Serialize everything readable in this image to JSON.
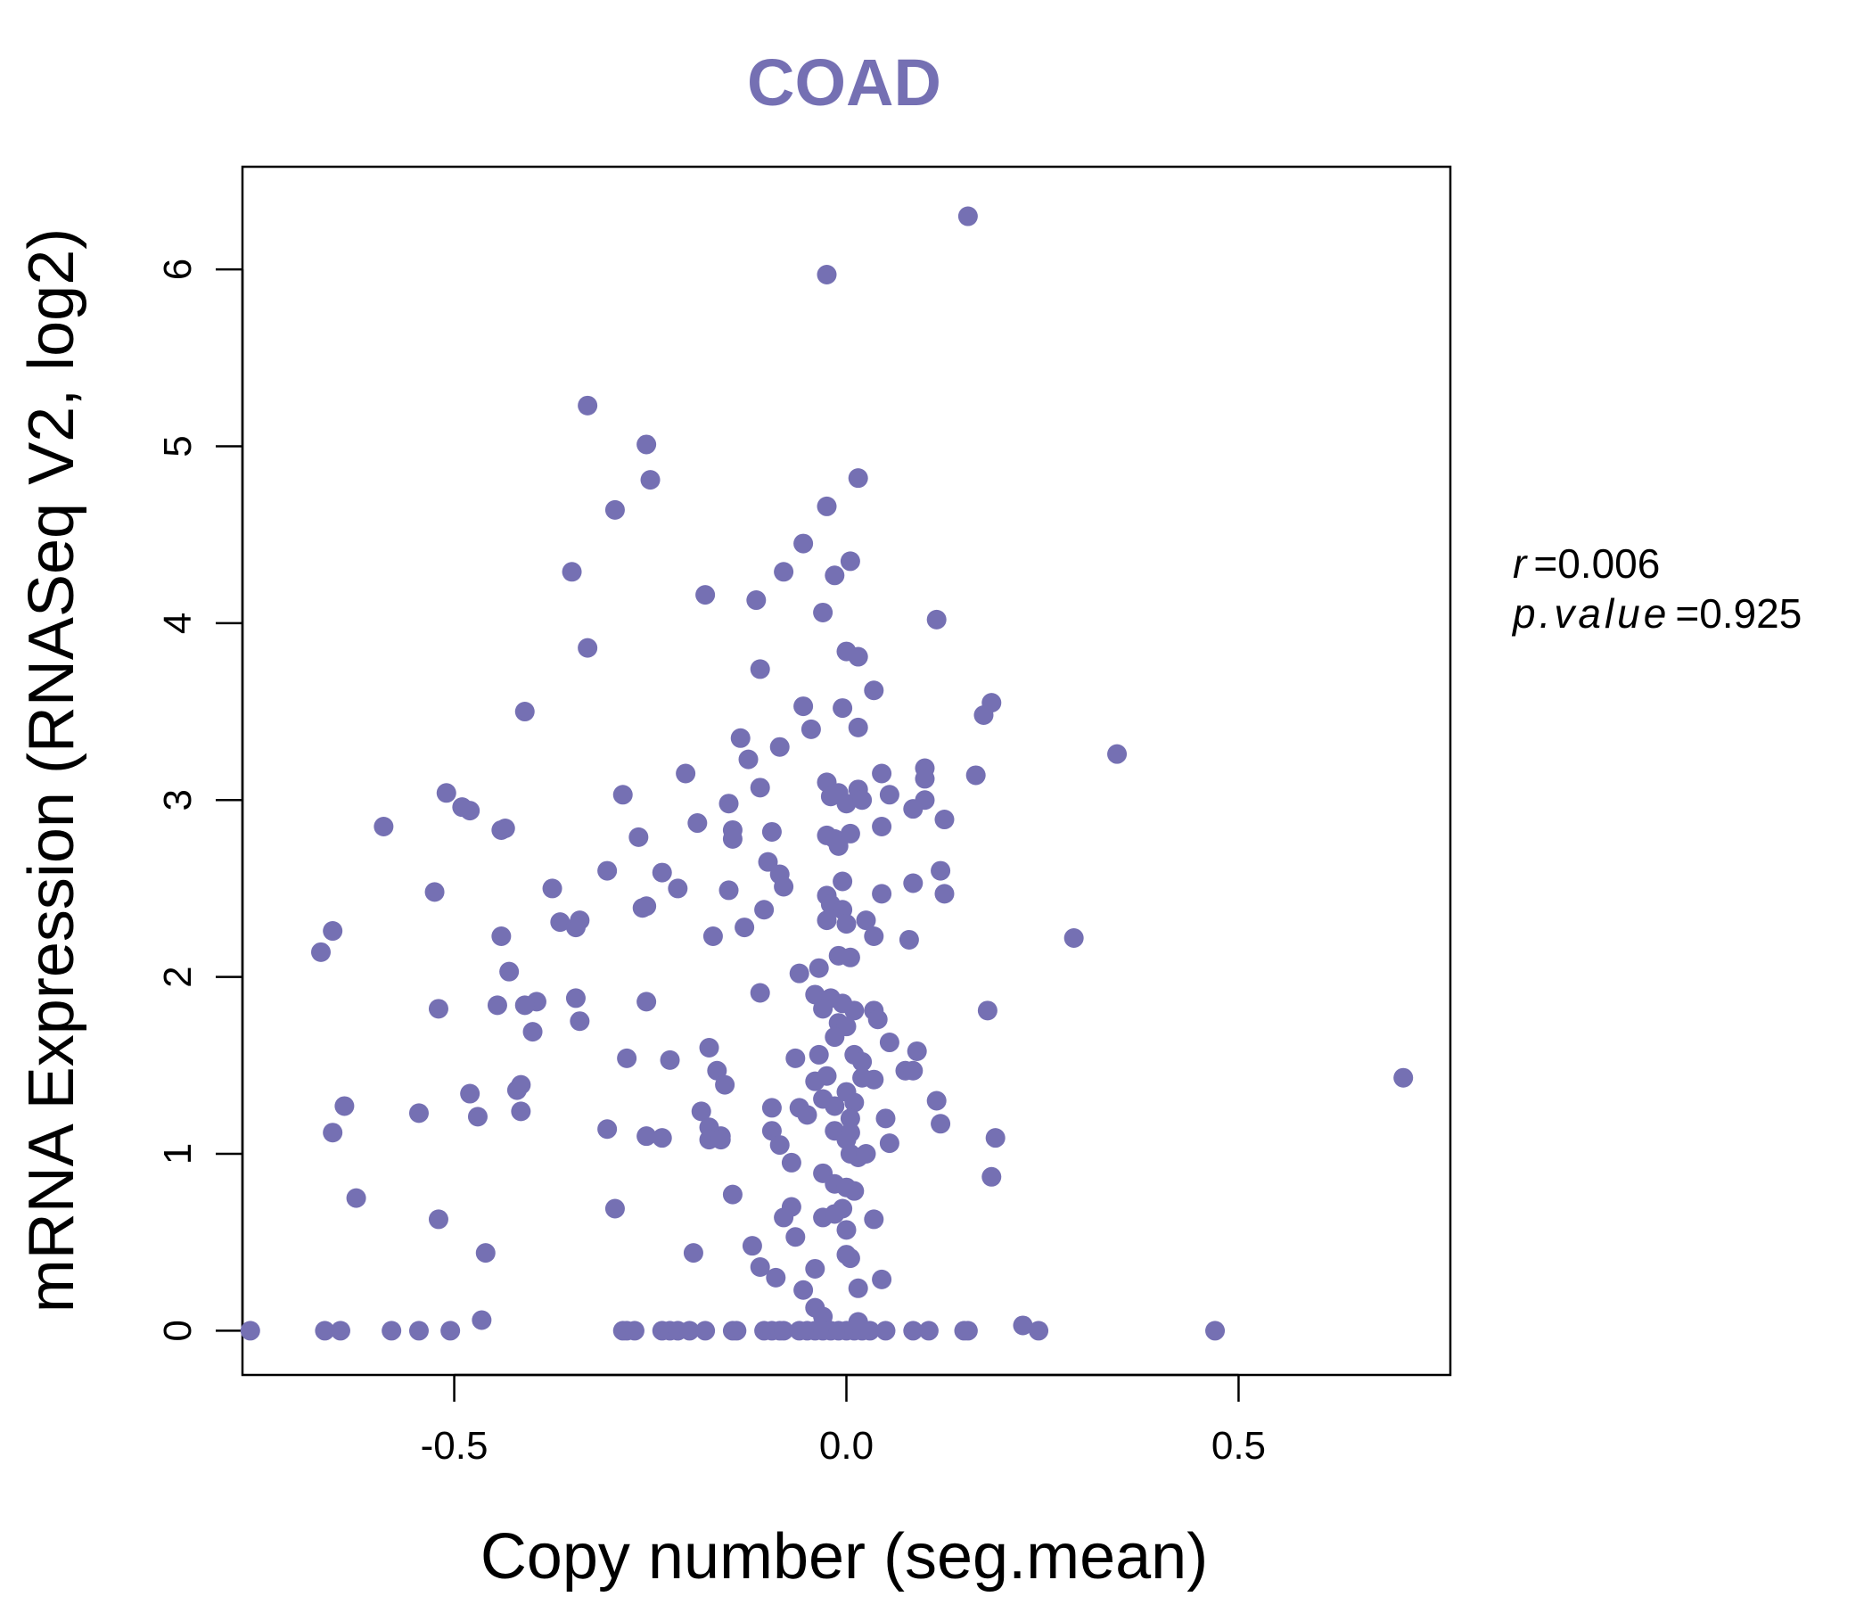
{
  "chart_data": {
    "type": "scatter",
    "title": "COAD",
    "xlabel": "Copy number (seg.mean)",
    "ylabel": "mRNA Expression (RNASeq V2, log2)",
    "xlim": [
      -0.77,
      0.77
    ],
    "ylim": [
      -0.25,
      6.58
    ],
    "x_ticks": [
      -0.5,
      0.0,
      0.5
    ],
    "x_tick_labels": [
      "-0.5",
      "0.0",
      "0.5"
    ],
    "y_ticks": [
      0,
      1,
      2,
      3,
      4,
      5,
      6
    ],
    "y_tick_labels": [
      "0",
      "1",
      "2",
      "3",
      "4",
      "5",
      "6"
    ],
    "grid": false,
    "legend": null,
    "color": "#7570b3",
    "annotation": {
      "r_label": "r",
      "r_value": "0.006",
      "p_label": "p.value",
      "p_value": "0.925"
    },
    "points": [
      [
        0.155,
        6.3
      ],
      [
        -0.025,
        5.97
      ],
      [
        -0.33,
        5.23
      ],
      [
        -0.255,
        5.01
      ],
      [
        -0.25,
        4.81
      ],
      [
        0.015,
        4.82
      ],
      [
        -0.295,
        4.64
      ],
      [
        -0.025,
        4.66
      ],
      [
        -0.055,
        4.45
      ],
      [
        -0.35,
        4.29
      ],
      [
        -0.08,
        4.29
      ],
      [
        0.005,
        4.35
      ],
      [
        -0.015,
        4.27
      ],
      [
        -0.18,
        4.16
      ],
      [
        -0.115,
        4.13
      ],
      [
        -0.03,
        4.06
      ],
      [
        0.115,
        4.02
      ],
      [
        -0.33,
        3.86
      ],
      [
        0.0,
        3.84
      ],
      [
        0.015,
        3.81
      ],
      [
        -0.11,
        3.74
      ],
      [
        0.035,
        3.62
      ],
      [
        -0.41,
        3.5
      ],
      [
        -0.055,
        3.53
      ],
      [
        -0.005,
        3.52
      ],
      [
        0.185,
        3.55
      ],
      [
        0.175,
        3.48
      ],
      [
        -0.045,
        3.4
      ],
      [
        0.015,
        3.41
      ],
      [
        -0.135,
        3.35
      ],
      [
        -0.085,
        3.3
      ],
      [
        0.345,
        3.26
      ],
      [
        -0.125,
        3.23
      ],
      [
        -0.205,
        3.15
      ],
      [
        0.045,
        3.15
      ],
      [
        0.1,
        3.18
      ],
      [
        0.165,
        3.14
      ],
      [
        -0.025,
        3.1
      ],
      [
        0.1,
        3.12
      ],
      [
        -0.51,
        3.04
      ],
      [
        -0.285,
        3.03
      ],
      [
        -0.11,
        3.07
      ],
      [
        -0.02,
        3.02
      ],
      [
        0.015,
        3.06
      ],
      [
        0.055,
        3.03
      ],
      [
        -0.01,
        3.04
      ],
      [
        -0.49,
        2.96
      ],
      [
        -0.48,
        2.94
      ],
      [
        -0.15,
        2.98
      ],
      [
        0.0,
        2.98
      ],
      [
        0.02,
        3.0
      ],
      [
        0.1,
        3.0
      ],
      [
        -0.59,
        2.85
      ],
      [
        -0.44,
        2.83
      ],
      [
        -0.435,
        2.84
      ],
      [
        -0.19,
        2.87
      ],
      [
        -0.145,
        2.83
      ],
      [
        -0.145,
        2.78
      ],
      [
        -0.095,
        2.82
      ],
      [
        -0.025,
        2.8
      ],
      [
        -0.015,
        2.78
      ],
      [
        0.005,
        2.81
      ],
      [
        -0.01,
        2.74
      ],
      [
        0.045,
        2.85
      ],
      [
        0.085,
        2.95
      ],
      [
        0.125,
        2.89
      ],
      [
        -0.265,
        2.79
      ],
      [
        -0.305,
        2.6
      ],
      [
        -0.235,
        2.59
      ],
      [
        -0.1,
        2.65
      ],
      [
        -0.085,
        2.58
      ],
      [
        -0.08,
        2.51
      ],
      [
        -0.005,
        2.54
      ],
      [
        0.085,
        2.53
      ],
      [
        0.12,
        2.6
      ],
      [
        -0.525,
        2.48
      ],
      [
        -0.375,
        2.5
      ],
      [
        -0.215,
        2.5
      ],
      [
        -0.15,
        2.49
      ],
      [
        -0.26,
        2.39
      ],
      [
        -0.255,
        2.4
      ],
      [
        -0.105,
        2.38
      ],
      [
        -0.025,
        2.46
      ],
      [
        0.045,
        2.47
      ],
      [
        0.125,
        2.47
      ],
      [
        -0.02,
        2.41
      ],
      [
        -0.005,
        2.38
      ],
      [
        -0.655,
        2.26
      ],
      [
        -0.365,
        2.31
      ],
      [
        -0.345,
        2.28
      ],
      [
        -0.34,
        2.32
      ],
      [
        -0.13,
        2.28
      ],
      [
        -0.17,
        2.23
      ],
      [
        -0.025,
        2.32
      ],
      [
        0.0,
        2.3
      ],
      [
        0.025,
        2.32
      ],
      [
        0.035,
        2.23
      ],
      [
        0.08,
        2.21
      ],
      [
        -0.67,
        2.14
      ],
      [
        -0.44,
        2.23
      ],
      [
        -0.01,
        2.12
      ],
      [
        0.005,
        2.11
      ],
      [
        -0.43,
        2.03
      ],
      [
        -0.035,
        2.05
      ],
      [
        -0.06,
        2.02
      ],
      [
        0.29,
        2.22
      ],
      [
        -0.345,
        1.88
      ],
      [
        -0.395,
        1.86
      ],
      [
        -0.41,
        1.84
      ],
      [
        -0.255,
        1.86
      ],
      [
        -0.11,
        1.91
      ],
      [
        -0.04,
        1.9
      ],
      [
        -0.02,
        1.88
      ],
      [
        -0.005,
        1.85
      ],
      [
        0.01,
        1.81
      ],
      [
        0.035,
        1.81
      ],
      [
        -0.52,
        1.82
      ],
      [
        -0.445,
        1.84
      ],
      [
        -0.03,
        1.82
      ],
      [
        -0.34,
        1.75
      ],
      [
        -0.4,
        1.69
      ],
      [
        0.18,
        1.81
      ],
      [
        -0.01,
        1.74
      ],
      [
        0.0,
        1.72
      ],
      [
        0.04,
        1.76
      ],
      [
        -0.175,
        1.6
      ],
      [
        -0.015,
        1.66
      ],
      [
        0.055,
        1.63
      ],
      [
        -0.28,
        1.54
      ],
      [
        -0.225,
        1.53
      ],
      [
        -0.065,
        1.54
      ],
      [
        -0.035,
        1.56
      ],
      [
        0.01,
        1.56
      ],
      [
        0.02,
        1.52
      ],
      [
        0.09,
        1.58
      ],
      [
        -0.165,
        1.47
      ],
      [
        -0.155,
        1.39
      ],
      [
        -0.04,
        1.41
      ],
      [
        -0.025,
        1.44
      ],
      [
        0.02,
        1.43
      ],
      [
        0.035,
        1.42
      ],
      [
        0.075,
        1.47
      ],
      [
        0.085,
        1.47
      ],
      [
        0.71,
        1.43
      ],
      [
        -0.48,
        1.34
      ],
      [
        -0.42,
        1.36
      ],
      [
        -0.415,
        1.39
      ],
      [
        -0.64,
        1.27
      ],
      [
        -0.545,
        1.23
      ],
      [
        -0.47,
        1.21
      ],
      [
        -0.415,
        1.24
      ],
      [
        -0.185,
        1.24
      ],
      [
        -0.095,
        1.26
      ],
      [
        -0.06,
        1.26
      ],
      [
        -0.05,
        1.22
      ],
      [
        -0.03,
        1.31
      ],
      [
        -0.015,
        1.27
      ],
      [
        0.0,
        1.35
      ],
      [
        0.01,
        1.29
      ],
      [
        0.005,
        1.2
      ],
      [
        0.05,
        1.2
      ],
      [
        0.115,
        1.3
      ],
      [
        0.12,
        1.17
      ],
      [
        -0.655,
        1.12
      ],
      [
        -0.305,
        1.14
      ],
      [
        -0.255,
        1.1
      ],
      [
        -0.235,
        1.09
      ],
      [
        -0.175,
        1.15
      ],
      [
        -0.175,
        1.08
      ],
      [
        -0.16,
        1.1
      ],
      [
        -0.16,
        1.08
      ],
      [
        -0.095,
        1.13
      ],
      [
        -0.085,
        1.05
      ],
      [
        -0.015,
        1.13
      ],
      [
        0.0,
        1.08
      ],
      [
        0.005,
        1.12
      ],
      [
        0.055,
        1.06
      ],
      [
        0.19,
        1.09
      ],
      [
        -0.07,
        0.95
      ],
      [
        0.005,
        1.0
      ],
      [
        0.015,
        0.98
      ],
      [
        0.025,
        1.0
      ],
      [
        -0.03,
        0.89
      ],
      [
        -0.015,
        0.83
      ],
      [
        0.0,
        0.81
      ],
      [
        0.01,
        0.79
      ],
      [
        0.185,
        0.87
      ],
      [
        -0.625,
        0.75
      ],
      [
        -0.145,
        0.77
      ],
      [
        -0.295,
        0.69
      ],
      [
        -0.07,
        0.7
      ],
      [
        -0.005,
        0.69
      ],
      [
        -0.08,
        0.64
      ],
      [
        -0.03,
        0.64
      ],
      [
        -0.015,
        0.66
      ],
      [
        0.035,
        0.63
      ],
      [
        -0.52,
        0.63
      ],
      [
        0.0,
        0.57
      ],
      [
        -0.065,
        0.53
      ],
      [
        -0.12,
        0.48
      ],
      [
        -0.195,
        0.44
      ],
      [
        -0.46,
        0.44
      ],
      [
        0.0,
        0.43
      ],
      [
        0.005,
        0.41
      ],
      [
        -0.11,
        0.36
      ],
      [
        -0.04,
        0.35
      ],
      [
        -0.09,
        0.3
      ],
      [
        0.045,
        0.29
      ],
      [
        -0.055,
        0.23
      ],
      [
        0.015,
        0.24
      ],
      [
        -0.04,
        0.13
      ],
      [
        -0.03,
        0.08
      ],
      [
        -0.465,
        0.06
      ],
      [
        0.015,
        0.05
      ],
      [
        0.225,
        0.03
      ],
      [
        -0.76,
        0.0
      ],
      [
        -0.665,
        0.0
      ],
      [
        -0.645,
        0.0
      ],
      [
        -0.58,
        0.0
      ],
      [
        -0.545,
        0.0
      ],
      [
        -0.505,
        0.0
      ],
      [
        -0.285,
        0.0
      ],
      [
        -0.28,
        0.0
      ],
      [
        -0.27,
        0.0
      ],
      [
        -0.235,
        0.0
      ],
      [
        -0.225,
        0.0
      ],
      [
        -0.215,
        0.0
      ],
      [
        -0.2,
        0.0
      ],
      [
        -0.18,
        0.0
      ],
      [
        -0.145,
        0.0
      ],
      [
        -0.14,
        0.0
      ],
      [
        -0.105,
        0.0
      ],
      [
        -0.095,
        0.0
      ],
      [
        -0.085,
        0.0
      ],
      [
        -0.08,
        0.0
      ],
      [
        -0.06,
        0.0
      ],
      [
        -0.05,
        0.0
      ],
      [
        -0.04,
        0.0
      ],
      [
        -0.03,
        0.0
      ],
      [
        -0.02,
        0.0
      ],
      [
        -0.01,
        0.0
      ],
      [
        0.0,
        0.0
      ],
      [
        0.01,
        0.0
      ],
      [
        0.02,
        0.0
      ],
      [
        0.03,
        0.0
      ],
      [
        0.05,
        0.0
      ],
      [
        0.085,
        0.0
      ],
      [
        0.105,
        0.0
      ],
      [
        0.15,
        0.0
      ],
      [
        0.155,
        0.0
      ],
      [
        0.245,
        0.0
      ],
      [
        0.47,
        0.0
      ]
    ]
  }
}
